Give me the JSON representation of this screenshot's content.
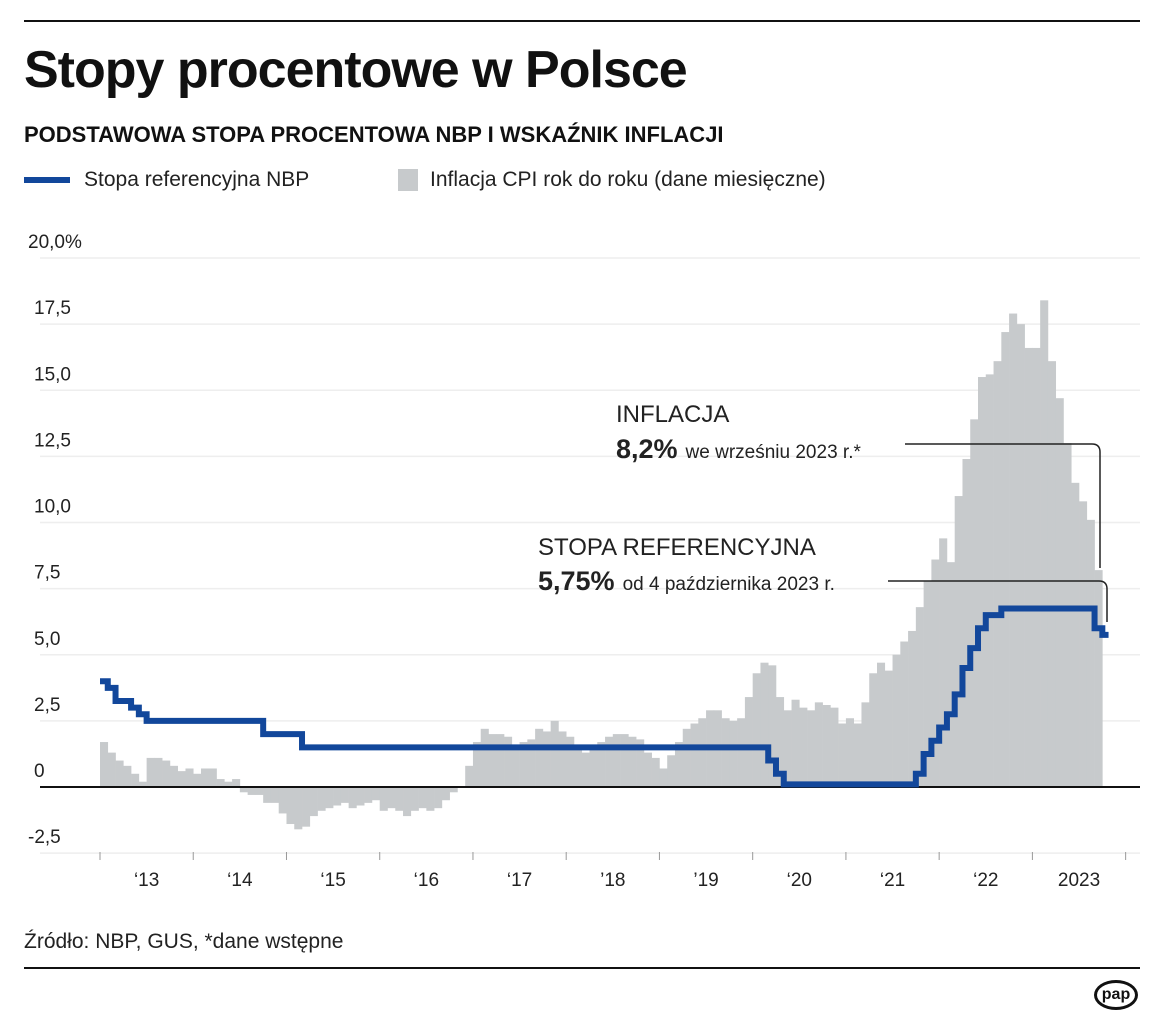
{
  "title": "Stopy procentowe w Polsce",
  "subtitle": "PODSTAWOWA STOPA PROCENTOWA NBP I WSKAŹNIK INFLACJI",
  "source": "Źródło: NBP, GUS, *dane wstępne",
  "logo": "pap",
  "colors": {
    "rate": "#12479b",
    "inflation": "#c7cacc",
    "axis": "#111111",
    "grid": "#eeeeee"
  },
  "chart_data": {
    "type": "bar+line",
    "ylim": [
      -2.5,
      20
    ],
    "grid": true,
    "legend_placement": "top-left",
    "y_ticks": [
      "-2,5",
      "0",
      "2,5",
      "5,0",
      "7,5",
      "10,0",
      "12,5",
      "15,0",
      "17,5",
      "20,0%"
    ],
    "y_tick_values": [
      -2.5,
      0,
      2.5,
      5,
      7.5,
      10,
      12.5,
      15,
      17.5,
      20
    ],
    "x_ticks": [
      "‘13",
      "‘14",
      "‘15",
      "‘16",
      "‘17",
      "’18",
      "’19",
      "‘20",
      "‘21",
      "‘22",
      "2023"
    ],
    "x_start": "2013-01",
    "series": [
      {
        "name": "Inflacja CPI rok do roku (dane miesięczne)",
        "kind": "bar",
        "values": [
          1.7,
          1.3,
          1.0,
          0.8,
          0.5,
          0.2,
          1.1,
          1.1,
          1.0,
          0.8,
          0.6,
          0.7,
          0.5,
          0.7,
          0.7,
          0.3,
          0.2,
          0.3,
          -0.2,
          -0.3,
          -0.3,
          -0.6,
          -0.6,
          -1.0,
          -1.4,
          -1.6,
          -1.5,
          -1.1,
          -0.9,
          -0.8,
          -0.7,
          -0.6,
          -0.8,
          -0.7,
          -0.6,
          -0.5,
          -0.9,
          -0.8,
          -0.9,
          -1.1,
          -0.9,
          -0.8,
          -0.9,
          -0.8,
          -0.5,
          -0.2,
          0.0,
          0.8,
          1.7,
          2.2,
          2.0,
          2.0,
          1.9,
          1.5,
          1.7,
          1.8,
          2.2,
          2.1,
          2.5,
          2.1,
          1.9,
          1.4,
          1.3,
          1.6,
          1.7,
          1.9,
          2.0,
          2.0,
          1.9,
          1.8,
          1.3,
          1.1,
          0.7,
          1.2,
          1.7,
          2.2,
          2.4,
          2.6,
          2.9,
          2.9,
          2.6,
          2.5,
          2.6,
          3.4,
          4.3,
          4.7,
          4.6,
          3.4,
          2.9,
          3.3,
          3.0,
          2.9,
          3.2,
          3.1,
          3.0,
          2.4,
          2.6,
          2.4,
          3.2,
          4.3,
          4.7,
          4.4,
          5.0,
          5.5,
          5.9,
          6.8,
          7.8,
          8.6,
          9.4,
          8.5,
          11.0,
          12.4,
          13.9,
          15.5,
          15.6,
          16.1,
          17.2,
          17.9,
          17.5,
          16.6,
          16.6,
          18.4,
          16.1,
          14.7,
          13.0,
          11.5,
          10.8,
          10.1,
          8.2
        ]
      },
      {
        "name": "Stopa referencyjna NBP",
        "kind": "step-line",
        "steps": [
          [
            "2013-01",
            4.0
          ],
          [
            "2013-02",
            3.75
          ],
          [
            "2013-03",
            3.25
          ],
          [
            "2013-05",
            3.0
          ],
          [
            "2013-06",
            2.75
          ],
          [
            "2013-07",
            2.5
          ],
          [
            "2014-10",
            2.0
          ],
          [
            "2015-03",
            1.5
          ],
          [
            "2020-03",
            1.0
          ],
          [
            "2020-04",
            0.5
          ],
          [
            "2020-05",
            0.1
          ],
          [
            "2021-10",
            0.5
          ],
          [
            "2021-11",
            1.25
          ],
          [
            "2021-12",
            1.75
          ],
          [
            "2022-01",
            2.25
          ],
          [
            "2022-02",
            2.75
          ],
          [
            "2022-03",
            3.5
          ],
          [
            "2022-04",
            4.5
          ],
          [
            "2022-05",
            5.25
          ],
          [
            "2022-06",
            6.0
          ],
          [
            "2022-07",
            6.5
          ],
          [
            "2022-09",
            6.75
          ],
          [
            "2023-09",
            6.0
          ],
          [
            "2023-10",
            5.75
          ]
        ],
        "end": "2023-10"
      }
    ],
    "annotations": [
      {
        "label": "INFLACJA",
        "value": "8,2%",
        "text": "we wrześniu 2023 r.*"
      },
      {
        "label": "STOPA REFERENCYJNA",
        "value": "5,75%",
        "text": "od 4 października 2023 r."
      }
    ]
  }
}
